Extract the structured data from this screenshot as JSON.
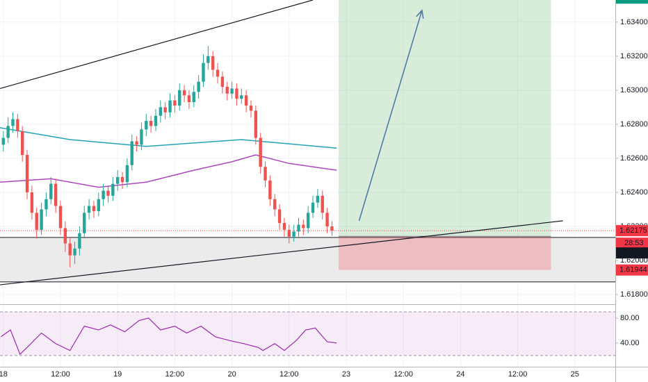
{
  "chart_data": {
    "type": "candlestick",
    "up_color": "#26a69a",
    "down_color": "#ef5350",
    "xlim": [
      -0.7,
      128.5
    ],
    "xticks": [
      {
        "value": 0,
        "label": "18"
      },
      {
        "value": 12,
        "label": "12:00"
      },
      {
        "value": 24,
        "label": "19"
      },
      {
        "value": 36,
        "label": "12:00"
      },
      {
        "value": 48,
        "label": "20"
      },
      {
        "value": 60,
        "label": "12:00"
      },
      {
        "value": 72,
        "label": "23"
      },
      {
        "value": 84,
        "label": "12:00"
      },
      {
        "value": 96,
        "label": "24"
      },
      {
        "value": 108,
        "label": "12:00"
      },
      {
        "value": 120,
        "label": "25"
      }
    ],
    "ylim": [
      1.61743,
      1.6353
    ],
    "yticks": [
      {
        "value": 1.618,
        "label": "1.61800"
      },
      {
        "value": 1.62,
        "label": "1.62000"
      },
      {
        "value": 1.622,
        "label": "1.62200"
      },
      {
        "value": 1.624,
        "label": "1.62400"
      },
      {
        "value": 1.626,
        "label": "1.62600"
      },
      {
        "value": 1.628,
        "label": "1.62800"
      },
      {
        "value": 1.63,
        "label": "1.63000"
      },
      {
        "value": 1.632,
        "label": "1.63200"
      },
      {
        "value": 1.634,
        "label": "1.63400"
      }
    ],
    "grid": true,
    "x": [
      0,
      1,
      2,
      3,
      4,
      5,
      6,
      7,
      8,
      9,
      10,
      11,
      12,
      13,
      14,
      15,
      16,
      17,
      18,
      19,
      20,
      21,
      22,
      23,
      24,
      25,
      26,
      27,
      28,
      29,
      30,
      31,
      32,
      33,
      34,
      35,
      36,
      37,
      38,
      39,
      40,
      41,
      42,
      43,
      44,
      45,
      46,
      47,
      48,
      49,
      50,
      51,
      52,
      53,
      54,
      55,
      56,
      57,
      58,
      59,
      60,
      61,
      62,
      63,
      64,
      65,
      66,
      67,
      68,
      69
    ],
    "ohlc": [
      [
        1.6268,
        1.6276,
        1.6264,
        1.6272
      ],
      [
        1.6272,
        1.6284,
        1.6269,
        1.6279
      ],
      [
        1.6279,
        1.6287,
        1.6275,
        1.6283
      ],
      [
        1.6283,
        1.6286,
        1.6272,
        1.6276
      ],
      [
        1.6276,
        1.6279,
        1.6258,
        1.6262
      ],
      [
        1.6262,
        1.6265,
        1.6236,
        1.624
      ],
      [
        1.624,
        1.6244,
        1.6224,
        1.6228
      ],
      [
        1.6228,
        1.6231,
        1.6213,
        1.6218
      ],
      [
        1.6218,
        1.6234,
        1.6215,
        1.623
      ],
      [
        1.623,
        1.624,
        1.6226,
        1.6236
      ],
      [
        1.6236,
        1.6249,
        1.6233,
        1.6245
      ],
      [
        1.6245,
        1.6248,
        1.6228,
        1.6232
      ],
      [
        1.6232,
        1.6235,
        1.6215,
        1.6219
      ],
      [
        1.6219,
        1.6223,
        1.6205,
        1.621
      ],
      [
        1.621,
        1.6213,
        1.6196,
        1.6203
      ],
      [
        1.6203,
        1.6211,
        1.6198,
        1.6207
      ],
      [
        1.6207,
        1.622,
        1.6203,
        1.6216
      ],
      [
        1.6216,
        1.6232,
        1.6213,
        1.6228
      ],
      [
        1.6228,
        1.6236,
        1.6224,
        1.6232
      ],
      [
        1.6232,
        1.6235,
        1.6225,
        1.6229
      ],
      [
        1.6229,
        1.624,
        1.6226,
        1.6236
      ],
      [
        1.6236,
        1.6245,
        1.6232,
        1.6241
      ],
      [
        1.6241,
        1.6244,
        1.6234,
        1.6238
      ],
      [
        1.6238,
        1.6249,
        1.6235,
        1.6245
      ],
      [
        1.6245,
        1.6253,
        1.6241,
        1.6249
      ],
      [
        1.6249,
        1.6252,
        1.6242,
        1.6246
      ],
      [
        1.6246,
        1.626,
        1.6243,
        1.6256
      ],
      [
        1.6256,
        1.6274,
        1.6253,
        1.627
      ],
      [
        1.627,
        1.6273,
        1.6264,
        1.6268
      ],
      [
        1.6268,
        1.6281,
        1.6265,
        1.6277
      ],
      [
        1.6277,
        1.6286,
        1.6273,
        1.6282
      ],
      [
        1.6282,
        1.6285,
        1.6275,
        1.6279
      ],
      [
        1.6279,
        1.6289,
        1.6276,
        1.6285
      ],
      [
        1.6285,
        1.6294,
        1.6281,
        1.629
      ],
      [
        1.629,
        1.6293,
        1.6283,
        1.6287
      ],
      [
        1.6287,
        1.6298,
        1.6284,
        1.6294
      ],
      [
        1.6294,
        1.6297,
        1.6287,
        1.6291
      ],
      [
        1.6291,
        1.6304,
        1.6288,
        1.63
      ],
      [
        1.63,
        1.6303,
        1.6293,
        1.6297
      ],
      [
        1.6297,
        1.63,
        1.6289,
        1.6293
      ],
      [
        1.6293,
        1.6303,
        1.629,
        1.6299
      ],
      [
        1.6299,
        1.6309,
        1.6295,
        1.6305
      ],
      [
        1.6305,
        1.6321,
        1.6302,
        1.6316
      ],
      [
        1.6316,
        1.6326,
        1.6312,
        1.632
      ],
      [
        1.632,
        1.6323,
        1.6308,
        1.6312
      ],
      [
        1.6312,
        1.6316,
        1.6304,
        1.6308
      ],
      [
        1.6308,
        1.6311,
        1.6298,
        1.6302
      ],
      [
        1.6302,
        1.6305,
        1.6294,
        1.6298
      ],
      [
        1.6298,
        1.6305,
        1.6295,
        1.6301
      ],
      [
        1.6301,
        1.6304,
        1.6291,
        1.6295
      ],
      [
        1.6295,
        1.6301,
        1.6292,
        1.6297
      ],
      [
        1.6297,
        1.63,
        1.6287,
        1.6291
      ],
      [
        1.6291,
        1.6294,
        1.6284,
        1.6288
      ],
      [
        1.6288,
        1.6291,
        1.6268,
        1.6272
      ],
      [
        1.6272,
        1.6275,
        1.6251,
        1.6255
      ],
      [
        1.6255,
        1.6258,
        1.6243,
        1.6247
      ],
      [
        1.6247,
        1.625,
        1.6232,
        1.6236
      ],
      [
        1.6236,
        1.6239,
        1.6226,
        1.623
      ],
      [
        1.623,
        1.6233,
        1.6218,
        1.6222
      ],
      [
        1.6222,
        1.6225,
        1.6214,
        1.6218
      ],
      [
        1.6218,
        1.6221,
        1.621,
        1.6214
      ],
      [
        1.6214,
        1.6221,
        1.6211,
        1.6217
      ],
      [
        1.6217,
        1.6225,
        1.6214,
        1.6221
      ],
      [
        1.6221,
        1.6224,
        1.6215,
        1.6219
      ],
      [
        1.6219,
        1.6232,
        1.6216,
        1.6228
      ],
      [
        1.6228,
        1.6238,
        1.6225,
        1.6234
      ],
      [
        1.6234,
        1.6242,
        1.6231,
        1.6238
      ],
      [
        1.6238,
        1.6241,
        1.6224,
        1.6228
      ],
      [
        1.6228,
        1.6231,
        1.6216,
        1.622
      ],
      [
        1.622,
        1.6223,
        1.62145,
        1.62175
      ]
    ],
    "overlays": [
      {
        "color": "#22a2b5",
        "x": [
          -0.7,
          14,
          30,
          50,
          70
        ],
        "values": [
          1.6278,
          1.6271,
          1.6267,
          1.6271,
          1.6266
        ]
      },
      {
        "color": "#ab47bc",
        "x": [
          -0.7,
          10,
          20,
          30,
          40,
          48,
          53,
          60,
          70
        ],
        "values": [
          1.6246,
          1.6248,
          1.6243,
          1.6246,
          1.6253,
          1.6258,
          1.6262,
          1.6257,
          1.6253
        ]
      }
    ],
    "zone": [
      1.61874,
      1.62135
    ],
    "trendlines": [
      {
        "color": "#131722",
        "x": [
          -0.7,
          65
        ],
        "y": [
          1.6301,
          1.6353
        ]
      },
      {
        "color": "#131722",
        "x": [
          -0.7,
          117.5
        ],
        "y": [
          1.61857,
          1.62233
        ]
      }
    ],
    "arrow": {
      "color": "#4f79a6",
      "x": [
        74.7,
        87.9
      ],
      "y": [
        1.62233,
        1.63469
      ]
    },
    "position": {
      "x": [
        70.4,
        115
      ],
      "entry": 1.62142,
      "target": 1.63541,
      "stop": 1.61944
    },
    "last_price": 1.62175,
    "countdown": "28:53",
    "rsi": {
      "color": "#9c27b0",
      "ylim": [
        2,
        100
      ],
      "yticks": [
        {
          "value": 40,
          "label": "40.00"
        },
        {
          "value": 80,
          "label": "80.00"
        }
      ],
      "bands": [
        20,
        90
      ],
      "x": [
        -0.5,
        1.5,
        3.5,
        5,
        8,
        11,
        14,
        17,
        20,
        22.5,
        25.5,
        28.5,
        30.5,
        33,
        36,
        38.5,
        41.5,
        44.5,
        47.5,
        50.5,
        53.5,
        54.5,
        57,
        59,
        61.5,
        63.5,
        65.5,
        68,
        70
      ],
      "values": [
        50,
        61,
        22,
        33,
        56,
        39,
        28,
        67,
        61,
        69,
        58,
        76,
        80,
        61,
        67,
        56,
        67,
        50,
        44,
        39,
        33,
        28,
        39,
        28,
        44,
        61,
        64,
        42,
        40
      ]
    }
  }
}
